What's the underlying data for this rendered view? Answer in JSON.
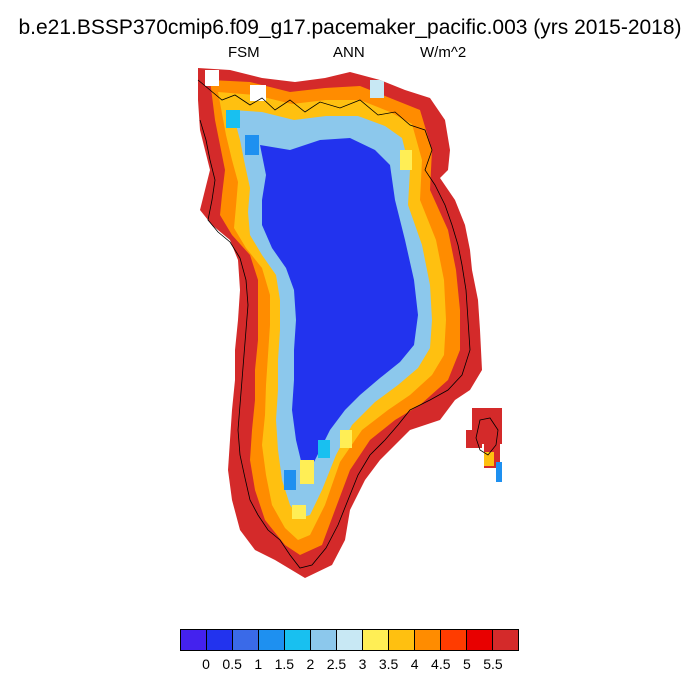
{
  "title": "b.e21.BSSP370cmip6.f09_g17.pacemaker_pacific.003 (yrs 2015-2018)",
  "variable": "FSM",
  "period": "ANN",
  "units": "W/m^2",
  "colorbar": {
    "colors": [
      "#4422ee",
      "#2233ee",
      "#3a6ae8",
      "#1e90f0",
      "#18c0f0",
      "#8cc8ec",
      "#c8e8f4",
      "#ffee55",
      "#ffc010",
      "#ff8c00",
      "#ff3c00",
      "#e80000",
      "#d42a2a"
    ],
    "tick_labels": [
      "0",
      "0.5",
      "1",
      "1.5",
      "2",
      "2.5",
      "3",
      "3.5",
      "4",
      "4.5",
      "5",
      "5.5"
    ]
  }
}
